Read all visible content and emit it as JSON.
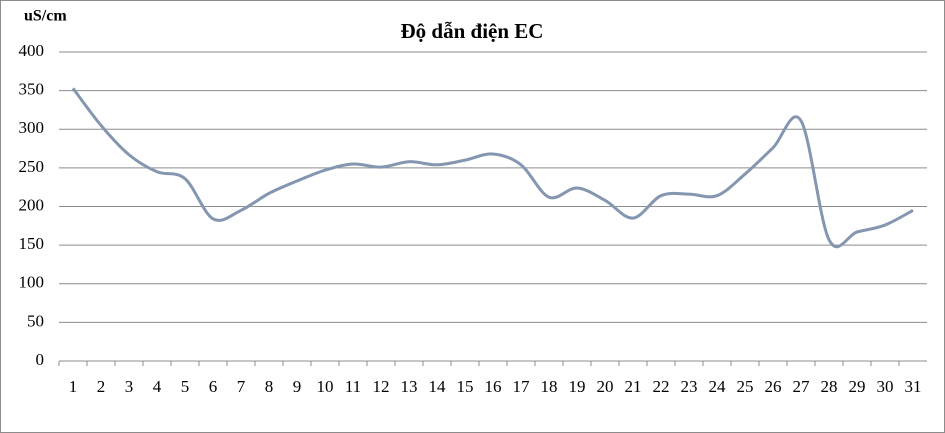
{
  "chart_data": {
    "type": "line",
    "title": "Độ dẫn  điện EC",
    "y_label": "uS/cm",
    "categories": [
      "1",
      "2",
      "3",
      "4",
      "5",
      "6",
      "7",
      "8",
      "9",
      "10",
      "11",
      "12",
      "13",
      "14",
      "15",
      "16",
      "17",
      "18",
      "19",
      "20",
      "21",
      "22",
      "23",
      "24",
      "25",
      "26",
      "27",
      "28",
      "29",
      "30",
      "31"
    ],
    "series": [
      {
        "name": "EC",
        "color": "#8496b0",
        "values": [
          353,
          305,
          267,
          245,
          236,
          184,
          195,
          217,
          233,
          247,
          255,
          251,
          258,
          254,
          260,
          268,
          254,
          212,
          224,
          208,
          185,
          214,
          216,
          214,
          242,
          276,
          311,
          157,
          167,
          176,
          195
        ]
      }
    ],
    "ylim": [
      0,
      400
    ],
    "yticks": [
      0,
      50,
      100,
      150,
      200,
      250,
      300,
      350,
      400
    ],
    "grid": true,
    "smooth": true
  }
}
